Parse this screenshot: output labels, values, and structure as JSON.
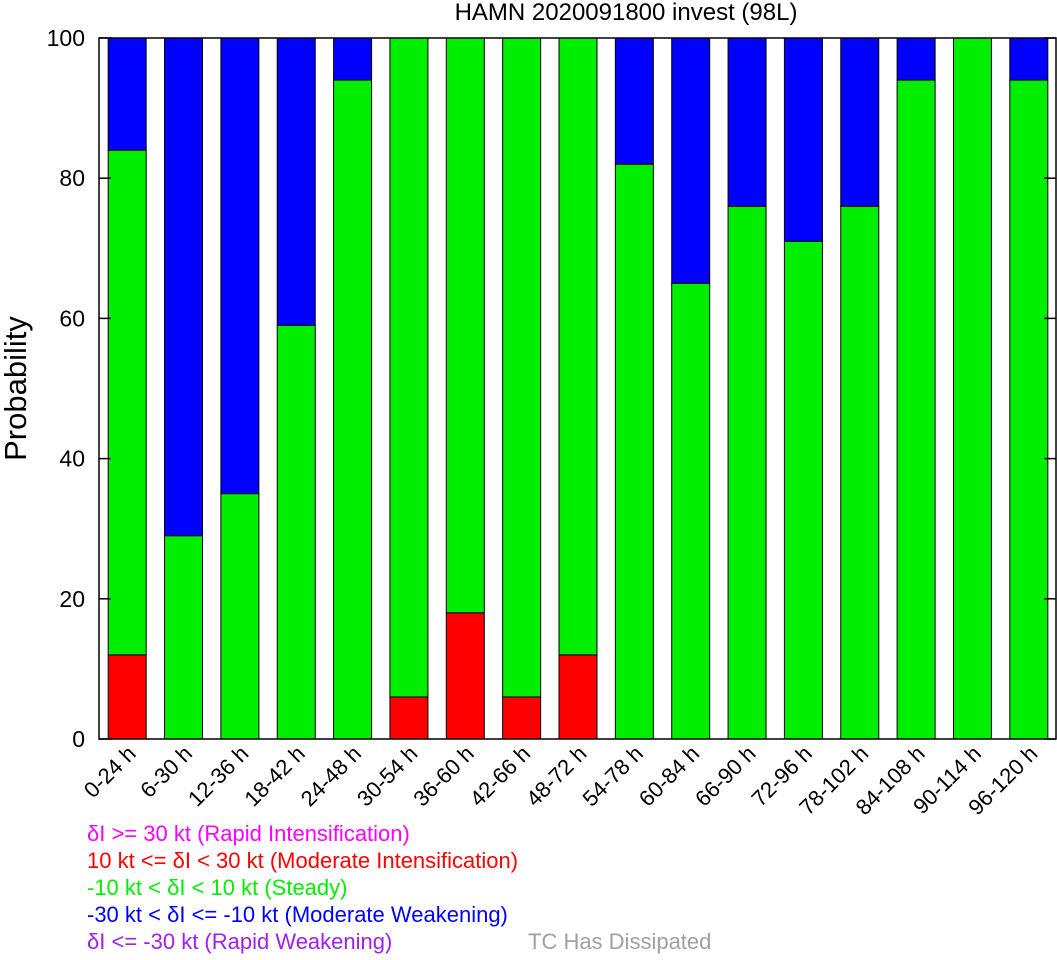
{
  "chart_data": {
    "type": "bar",
    "stacked": true,
    "title": "HAMN 2020091800 invest (98L)",
    "xlabel": "",
    "ylabel": "Probability",
    "ylim": [
      0,
      100
    ],
    "yticks": [
      "0",
      "20",
      "40",
      "60",
      "80",
      "100"
    ],
    "grid": false,
    "categories": [
      "0-24 h",
      "6-30 h",
      "12-36 h",
      "18-42 h",
      "24-48 h",
      "30-54 h",
      "36-60 h",
      "42-66 h",
      "48-72 h",
      "54-78 h",
      "60-84 h",
      "66-90 h",
      "72-96 h",
      "78-102 h",
      "84-108 h",
      "90-114 h",
      "96-120 h"
    ],
    "series": [
      {
        "name": "Moderate Intensification",
        "color": "#ff0000",
        "values": [
          12,
          0,
          0,
          0,
          0,
          6,
          18,
          6,
          12,
          0,
          0,
          0,
          0,
          0,
          0,
          0,
          0
        ]
      },
      {
        "name": "Steady",
        "color": "#00ee00",
        "values": [
          72,
          29,
          35,
          59,
          94,
          94,
          82,
          94,
          88,
          82,
          65,
          76,
          71,
          76,
          94,
          100,
          94
        ]
      },
      {
        "name": "Moderate Weakening",
        "color": "#0000ff",
        "values": [
          16,
          71,
          65,
          41,
          6,
          0,
          0,
          0,
          0,
          18,
          35,
          24,
          29,
          24,
          6,
          0,
          6
        ]
      }
    ]
  },
  "legend": [
    {
      "text": "δI >= 30 kt (Rapid Intensification)",
      "color": "#ff00ff"
    },
    {
      "text": "10 kt <= δI < 30 kt (Moderate Intensification)",
      "color": "#ff0000"
    },
    {
      "text": "-10 kt < δI < 10 kt (Steady)",
      "color": "#00ee00"
    },
    {
      "text": "-30 kt < δI <= -10 kt (Moderate Weakening)",
      "color": "#0000ff"
    },
    {
      "text": "δI <= -30 kt (Rapid Weakening)",
      "color": "#a020f0"
    }
  ],
  "dissipated": {
    "text": "TC Has Dissipated",
    "color": "#a0a0a0"
  }
}
